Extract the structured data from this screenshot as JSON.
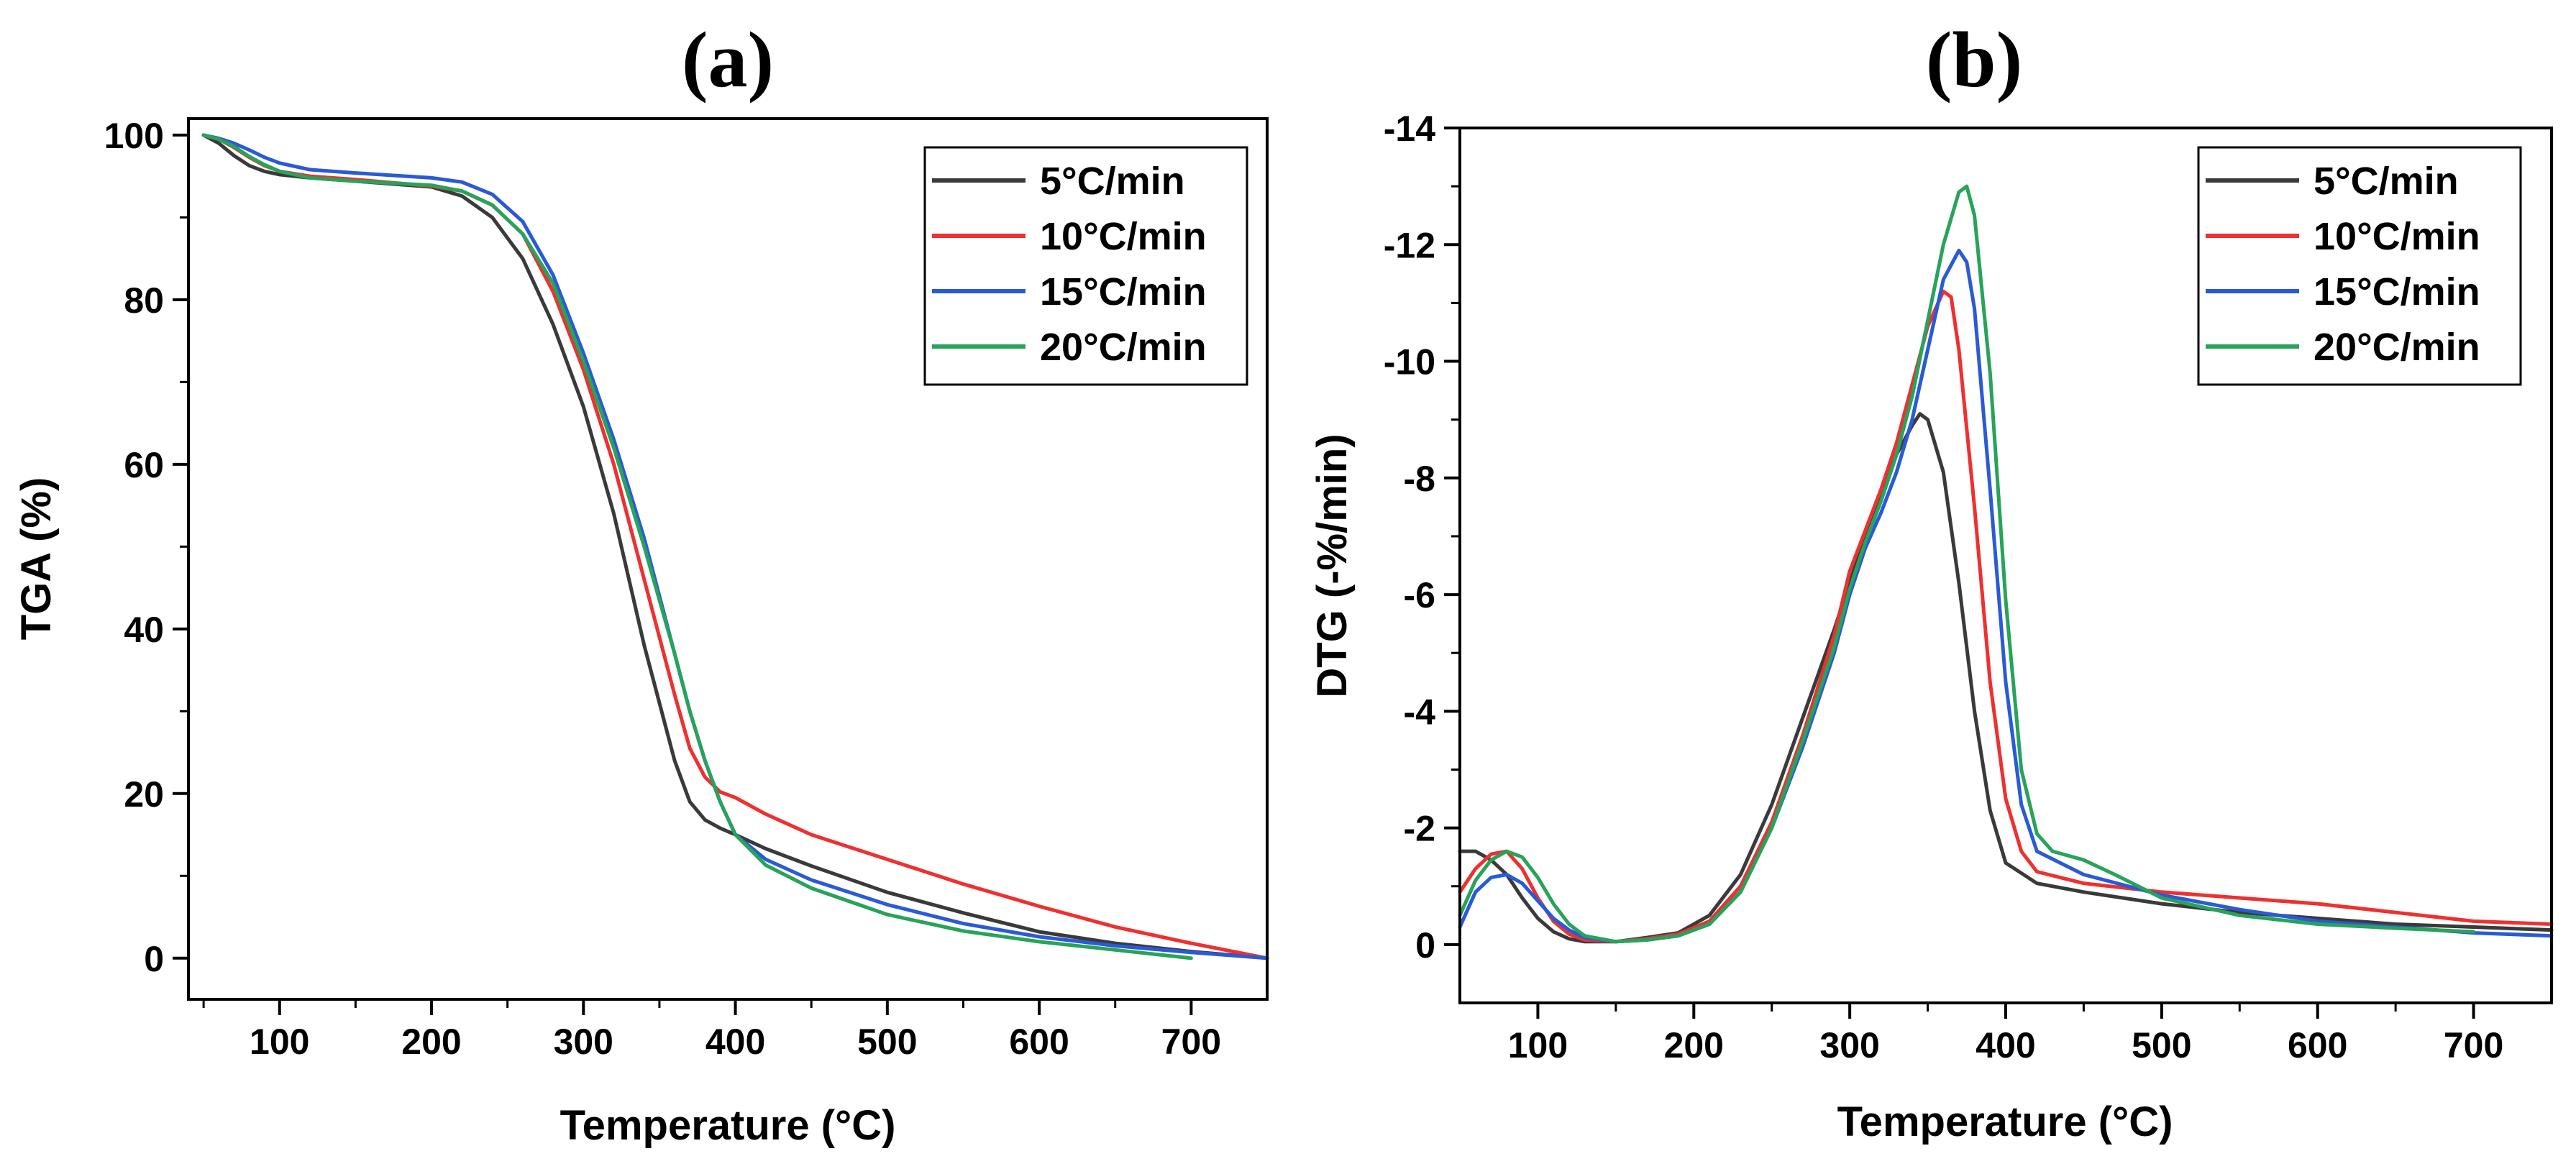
{
  "chart_data": [
    {
      "type": "line",
      "title": "(a)",
      "xlabel": "Temperature (°C)",
      "ylabel": "TGA (%)",
      "xlim": [
        40,
        750
      ],
      "ylim": [
        -5,
        102
      ],
      "x_ticks": [
        100,
        200,
        300,
        400,
        500,
        600,
        700
      ],
      "x_tick_labels": [
        "100",
        "200",
        "300",
        "400",
        "500",
        "600",
        "700"
      ],
      "y_ticks": [
        0,
        20,
        40,
        60,
        80,
        100
      ],
      "y_tick_labels": [
        "0",
        "20",
        "40",
        "60",
        "80",
        "100"
      ],
      "legend_position": "top-right",
      "series": [
        {
          "name": "5°C/min",
          "color": "#3a3a3a",
          "x": [
            50,
            60,
            70,
            80,
            90,
            100,
            120,
            150,
            200,
            220,
            240,
            260,
            280,
            300,
            320,
            340,
            360,
            370,
            380,
            390,
            400,
            420,
            450,
            500,
            550,
            600,
            650,
            700,
            750
          ],
          "y": [
            100,
            99,
            97.5,
            96.3,
            95.6,
            95.2,
            94.8,
            94.4,
            93.7,
            92.6,
            90,
            85,
            77,
            67,
            54,
            38,
            24,
            19,
            16.8,
            15.8,
            15,
            13.3,
            11.2,
            8,
            5.5,
            3.2,
            1.8,
            0.8,
            0
          ]
        },
        {
          "name": "10°C/min",
          "color": "#ee3030",
          "x": [
            50,
            60,
            70,
            80,
            90,
            100,
            120,
            150,
            200,
            220,
            240,
            260,
            280,
            300,
            320,
            340,
            360,
            370,
            380,
            390,
            400,
            420,
            450,
            500,
            550,
            600,
            650,
            700,
            750
          ],
          "y": [
            100,
            99.5,
            98.5,
            97.3,
            96.3,
            95.6,
            95,
            94.6,
            93.8,
            93.2,
            91.5,
            88,
            81,
            71.5,
            60,
            46,
            32,
            25.5,
            22,
            20.2,
            19.5,
            17.5,
            15,
            12,
            9,
            6.3,
            3.8,
            1.8,
            0
          ]
        },
        {
          "name": "15°C/min",
          "color": "#2a5ad8",
          "x": [
            50,
            60,
            70,
            80,
            90,
            100,
            120,
            150,
            200,
            220,
            240,
            260,
            280,
            300,
            320,
            340,
            360,
            370,
            380,
            390,
            400,
            420,
            450,
            500,
            550,
            600,
            650,
            700,
            750
          ],
          "y": [
            100,
            99.6,
            99,
            98.2,
            97.3,
            96.6,
            95.8,
            95.4,
            94.8,
            94.3,
            92.8,
            89.5,
            83,
            73.5,
            63,
            51,
            37,
            30,
            24,
            19,
            15,
            12,
            9.5,
            6.5,
            4.2,
            2.6,
            1.5,
            0.7,
            0
          ]
        },
        {
          "name": "20°C/min",
          "color": "#27a35a",
          "x": [
            50,
            60,
            70,
            80,
            90,
            100,
            120,
            150,
            200,
            220,
            240,
            260,
            280,
            300,
            320,
            340,
            360,
            370,
            380,
            390,
            400,
            420,
            450,
            500,
            550,
            600,
            650,
            700
          ],
          "y": [
            100,
            99.5,
            98.6,
            97.4,
            96.4,
            95.6,
            94.8,
            94.4,
            93.9,
            93.2,
            91.5,
            88,
            82,
            72.5,
            62,
            50,
            37,
            30,
            24,
            19,
            15,
            11.3,
            8.5,
            5.3,
            3.3,
            2,
            1,
            0
          ]
        }
      ]
    },
    {
      "type": "line",
      "title": "(b)",
      "xlabel": "Temperature (°C)",
      "ylabel": "DTG (-%/min)",
      "xlim": [
        50,
        750
      ],
      "ylim": [
        1,
        -14
      ],
      "y_axis_inverted": true,
      "x_ticks": [
        100,
        200,
        300,
        400,
        500,
        600,
        700
      ],
      "x_tick_labels": [
        "100",
        "200",
        "300",
        "400",
        "500",
        "600",
        "700"
      ],
      "y_ticks": [
        0,
        -2,
        -4,
        -6,
        -8,
        -10,
        -12,
        -14
      ],
      "y_tick_labels": [
        "0",
        "-2",
        "-4",
        "-6",
        "-8",
        "-10",
        "-12",
        "-14"
      ],
      "legend_position": "top-right",
      "series": [
        {
          "name": "5°C/min",
          "color": "#3a3a3a",
          "x": [
            50,
            60,
            70,
            80,
            90,
            100,
            110,
            120,
            130,
            150,
            170,
            190,
            210,
            230,
            250,
            270,
            290,
            300,
            310,
            320,
            330,
            340,
            345,
            350,
            360,
            370,
            380,
            390,
            400,
            420,
            450,
            500,
            550,
            600,
            650,
            700,
            750
          ],
          "y": [
            -1.6,
            -1.6,
            -1.45,
            -1.2,
            -0.8,
            -0.45,
            -0.22,
            -0.1,
            -0.05,
            -0.05,
            -0.12,
            -0.2,
            -0.5,
            -1.2,
            -2.4,
            -3.9,
            -5.4,
            -6.2,
            -7,
            -7.7,
            -8.4,
            -8.9,
            -9.1,
            -9,
            -8.1,
            -6.2,
            -4,
            -2.3,
            -1.4,
            -1.05,
            -0.9,
            -0.7,
            -0.55,
            -0.45,
            -0.35,
            -0.3,
            -0.25
          ]
        },
        {
          "name": "10°C/min",
          "color": "#ee3030",
          "x": [
            50,
            60,
            70,
            80,
            90,
            100,
            110,
            120,
            130,
            150,
            170,
            190,
            210,
            230,
            250,
            270,
            290,
            300,
            310,
            320,
            330,
            340,
            350,
            360,
            365,
            370,
            380,
            390,
            400,
            410,
            420,
            450,
            500,
            550,
            600,
            650,
            700,
            750
          ],
          "y": [
            -0.9,
            -1.3,
            -1.55,
            -1.6,
            -1.3,
            -0.8,
            -0.4,
            -0.18,
            -0.08,
            -0.05,
            -0.1,
            -0.18,
            -0.4,
            -1,
            -2.1,
            -3.6,
            -5.3,
            -6.4,
            -7.1,
            -7.8,
            -8.6,
            -9.6,
            -10.6,
            -11.2,
            -11.1,
            -10.2,
            -7.5,
            -4.5,
            -2.5,
            -1.6,
            -1.25,
            -1.05,
            -0.9,
            -0.8,
            -0.7,
            -0.55,
            -0.4,
            -0.35
          ]
        },
        {
          "name": "15°C/min",
          "color": "#2a5ad8",
          "x": [
            50,
            60,
            70,
            80,
            90,
            100,
            110,
            120,
            130,
            150,
            170,
            190,
            210,
            230,
            250,
            270,
            290,
            300,
            310,
            320,
            330,
            340,
            350,
            360,
            370,
            375,
            380,
            390,
            400,
            410,
            420,
            450,
            500,
            550,
            600,
            650,
            700,
            750
          ],
          "y": [
            -0.3,
            -0.9,
            -1.15,
            -1.2,
            -1.05,
            -0.75,
            -0.45,
            -0.25,
            -0.12,
            -0.05,
            -0.08,
            -0.15,
            -0.35,
            -0.9,
            -2,
            -3.4,
            -5,
            -6,
            -6.8,
            -7.4,
            -8.1,
            -9,
            -10.2,
            -11.4,
            -11.9,
            -11.7,
            -10.9,
            -7.8,
            -4.5,
            -2.4,
            -1.6,
            -1.2,
            -0.85,
            -0.6,
            -0.4,
            -0.3,
            -0.2,
            -0.15
          ]
        },
        {
          "name": "20°C/min",
          "color": "#27a35a",
          "x": [
            50,
            60,
            70,
            80,
            90,
            100,
            110,
            120,
            130,
            150,
            170,
            190,
            210,
            230,
            250,
            270,
            290,
            300,
            310,
            320,
            330,
            340,
            350,
            360,
            370,
            375,
            380,
            390,
            400,
            410,
            420,
            430,
            450,
            470,
            500,
            550,
            600,
            650,
            700
          ],
          "y": [
            -0.5,
            -1.1,
            -1.45,
            -1.6,
            -1.5,
            -1.15,
            -0.7,
            -0.35,
            -0.15,
            -0.05,
            -0.08,
            -0.15,
            -0.35,
            -0.9,
            -2,
            -3.5,
            -5.1,
            -6.1,
            -6.9,
            -7.6,
            -8.4,
            -9.4,
            -10.7,
            -12,
            -12.9,
            -13,
            -12.5,
            -9.8,
            -5.9,
            -3,
            -1.9,
            -1.6,
            -1.45,
            -1.2,
            -0.8,
            -0.5,
            -0.35,
            -0.28,
            -0.22
          ]
        }
      ]
    }
  ]
}
